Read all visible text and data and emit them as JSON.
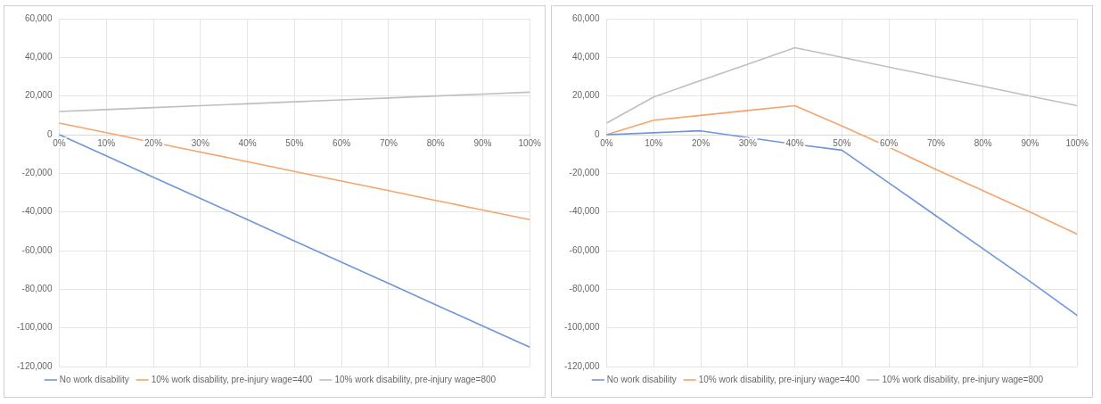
{
  "chart_data": [
    {
      "type": "line",
      "categories": [
        "0%",
        "10%",
        "20%",
        "30%",
        "40%",
        "50%",
        "60%",
        "70%",
        "80%",
        "90%",
        "100%"
      ],
      "ylim": [
        -120000,
        60000
      ],
      "yticks": [
        {
          "value": -120000,
          "label": "-120,000"
        },
        {
          "value": -100000,
          "label": "-100,000"
        },
        {
          "value": -80000,
          "label": "-80,000"
        },
        {
          "value": -60000,
          "label": "-60,000"
        },
        {
          "value": -40000,
          "label": "-40,000"
        },
        {
          "value": -20000,
          "label": "-20,000"
        },
        {
          "value": 0,
          "label": "0"
        },
        {
          "value": 20000,
          "label": "20,000"
        },
        {
          "value": 40000,
          "label": "40,000"
        },
        {
          "value": 60000,
          "label": "60,000"
        }
      ],
      "grid": true,
      "legend": "bottom",
      "marker": "none",
      "line_style": "solid",
      "series": [
        {
          "name": "No work disability",
          "color": "#7096d8",
          "values": [
            0,
            -11000,
            -22000,
            -33000,
            -44000,
            -55000,
            -66000,
            -77000,
            -88000,
            -99000,
            -110000
          ]
        },
        {
          "name": "10% work disability, pre-injury wage=400",
          "color": "#f4a46c",
          "values": [
            6000,
            1000,
            -4000,
            -9000,
            -14000,
            -19000,
            -24000,
            -29000,
            -34000,
            -39000,
            -44000
          ]
        },
        {
          "name": "10% work disability, pre-injury wage=800",
          "color": "#bfbfbf",
          "values": [
            12000,
            13000,
            14000,
            15000,
            16000,
            17000,
            18000,
            19000,
            20000,
            21000,
            22000
          ]
        }
      ]
    },
    {
      "type": "line",
      "categories": [
        "0%",
        "10%",
        "20%",
        "30%",
        "40%",
        "50%",
        "60%",
        "70%",
        "80%",
        "90%",
        "100%"
      ],
      "ylim": [
        -120000,
        60000
      ],
      "yticks": [
        {
          "value": -120000,
          "label": "-120,000"
        },
        {
          "value": -100000,
          "label": "-100,000"
        },
        {
          "value": -80000,
          "label": "-80,000"
        },
        {
          "value": -60000,
          "label": "-60,000"
        },
        {
          "value": -40000,
          "label": "-40,000"
        },
        {
          "value": -20000,
          "label": "-20,000"
        },
        {
          "value": 0,
          "label": "0"
        },
        {
          "value": 20000,
          "label": "20,000"
        },
        {
          "value": 40000,
          "label": "40,000"
        },
        {
          "value": 60000,
          "label": "60,000"
        }
      ],
      "grid": true,
      "legend": "bottom",
      "marker": "none",
      "line_style": "solid",
      "series": [
        {
          "name": "No work disability",
          "color": "#7096d8",
          "values": [
            0,
            1000,
            2000,
            -1500,
            -5000,
            -8000,
            -25000,
            -42000,
            -59000,
            -76000,
            -93500
          ]
        },
        {
          "name": "10% work disability, pre-injury wage=400",
          "color": "#f4a46c",
          "values": [
            0,
            7500,
            10000,
            12500,
            15000,
            4500,
            -6500,
            -18000,
            -29000,
            -40000,
            -51500
          ]
        },
        {
          "name": "10% work disability, pre-injury wage=800",
          "color": "#bfbfbf",
          "values": [
            6000,
            19500,
            28000,
            36500,
            45000,
            40000,
            35000,
            30000,
            25000,
            20000,
            15000
          ]
        }
      ]
    }
  ]
}
